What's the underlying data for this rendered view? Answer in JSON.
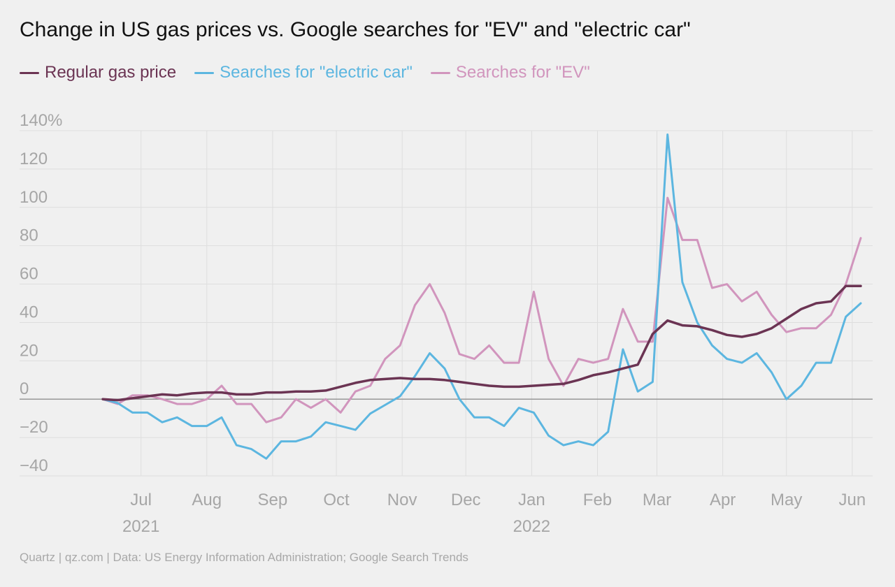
{
  "chart_data": {
    "type": "line",
    "title": "Change in US gas prices vs. Google searches for \"EV\" and \"electric car\"",
    "xlabel": "",
    "ylabel": "",
    "ylim": [
      -40,
      140
    ],
    "y_ticks": [
      {
        "value": 140,
        "label": "140%"
      },
      {
        "value": 120,
        "label": "120"
      },
      {
        "value": 100,
        "label": "100"
      },
      {
        "value": 80,
        "label": "80"
      },
      {
        "value": 60,
        "label": "60"
      },
      {
        "value": 40,
        "label": "40"
      },
      {
        "value": 20,
        "label": "20"
      },
      {
        "value": 0,
        "label": "0"
      },
      {
        "value": -20,
        "label": "−20"
      },
      {
        "value": -40,
        "label": "−40"
      }
    ],
    "x_ticks": [
      {
        "date": "2021-07-01",
        "label": "Jul",
        "year": "2021"
      },
      {
        "date": "2021-08-01",
        "label": "Aug"
      },
      {
        "date": "2021-09-01",
        "label": "Sep"
      },
      {
        "date": "2021-10-01",
        "label": "Oct"
      },
      {
        "date": "2021-11-01",
        "label": "Nov"
      },
      {
        "date": "2021-12-01",
        "label": "Dec"
      },
      {
        "date": "2022-01-01",
        "label": "Jan",
        "year": "2022"
      },
      {
        "date": "2022-02-01",
        "label": "Feb"
      },
      {
        "date": "2022-03-01",
        "label": "Mar"
      },
      {
        "date": "2022-04-01",
        "label": "Apr"
      },
      {
        "date": "2022-05-01",
        "label": "May"
      },
      {
        "date": "2022-06-01",
        "label": "Jun"
      }
    ],
    "grid": true,
    "legend_position": "top-left",
    "x": [
      "2021-06-13",
      "2021-06-20",
      "2021-06-27",
      "2021-07-04",
      "2021-07-11",
      "2021-07-18",
      "2021-07-25",
      "2021-08-01",
      "2021-08-08",
      "2021-08-15",
      "2021-08-22",
      "2021-08-29",
      "2021-09-05",
      "2021-09-12",
      "2021-09-19",
      "2021-09-26",
      "2021-10-03",
      "2021-10-10",
      "2021-10-17",
      "2021-10-24",
      "2021-10-31",
      "2021-11-07",
      "2021-11-14",
      "2021-11-21",
      "2021-11-28",
      "2021-12-05",
      "2021-12-12",
      "2021-12-19",
      "2021-12-26",
      "2022-01-02",
      "2022-01-09",
      "2022-01-16",
      "2022-01-23",
      "2022-01-30",
      "2022-02-06",
      "2022-02-13",
      "2022-02-20",
      "2022-02-27",
      "2022-03-06",
      "2022-03-13",
      "2022-03-20",
      "2022-03-27",
      "2022-04-03",
      "2022-04-10",
      "2022-04-17",
      "2022-04-24",
      "2022-05-01",
      "2022-05-08",
      "2022-05-15",
      "2022-05-22",
      "2022-05-29",
      "2022-06-05"
    ],
    "series": [
      {
        "name": "Regular gas price",
        "color": "#6b3453",
        "values": [
          0,
          -0.5,
          0.5,
          1.5,
          2.5,
          2,
          3,
          3.5,
          3.5,
          2.5,
          2.5,
          3.5,
          3.5,
          4,
          4,
          4.5,
          6.5,
          8.5,
          10,
          10.5,
          11,
          10.5,
          10.5,
          10,
          9,
          8,
          7,
          6.5,
          6.5,
          7,
          7.5,
          8,
          10,
          12.5,
          14,
          16,
          18,
          34,
          41,
          38.5,
          38,
          36,
          33.5,
          32.5,
          34,
          37,
          42,
          47,
          50,
          51,
          59,
          59
        ]
      },
      {
        "name": "Searches for \"electric car\"",
        "color": "#5cb6e0",
        "values": [
          0,
          -2,
          -7,
          -7,
          -12,
          -9.5,
          -14,
          -14,
          -9.5,
          -24,
          -26,
          -31,
          -22,
          -22,
          -19.5,
          -12,
          -14,
          -16,
          -7.5,
          -3,
          1.5,
          12,
          24,
          16,
          0,
          -9.5,
          -9.5,
          -14,
          -4.5,
          -7,
          -19,
          -24,
          -22,
          -24,
          -17,
          26,
          4,
          9,
          138,
          61,
          40,
          28,
          21,
          19,
          24,
          14,
          0,
          7,
          19,
          19,
          43,
          50
        ]
      },
      {
        "name": "Searches for \"EV\"",
        "color": "#d195bd",
        "values": [
          0,
          -2.5,
          2,
          2,
          0,
          -2.5,
          -2.5,
          0,
          7,
          -2.5,
          -2.5,
          -12,
          -9.5,
          0,
          -4.5,
          0,
          -7,
          4,
          7,
          21,
          28,
          49,
          60,
          45,
          23.5,
          21,
          28,
          19,
          19,
          56,
          21,
          7,
          21,
          19,
          21,
          47,
          30,
          30,
          105,
          83,
          83,
          58,
          60,
          51,
          56,
          44,
          35,
          37,
          37,
          44,
          60,
          84
        ]
      }
    ]
  },
  "footer": "Quartz | qz.com | Data: US Energy Information Administration; Google Search Trends"
}
